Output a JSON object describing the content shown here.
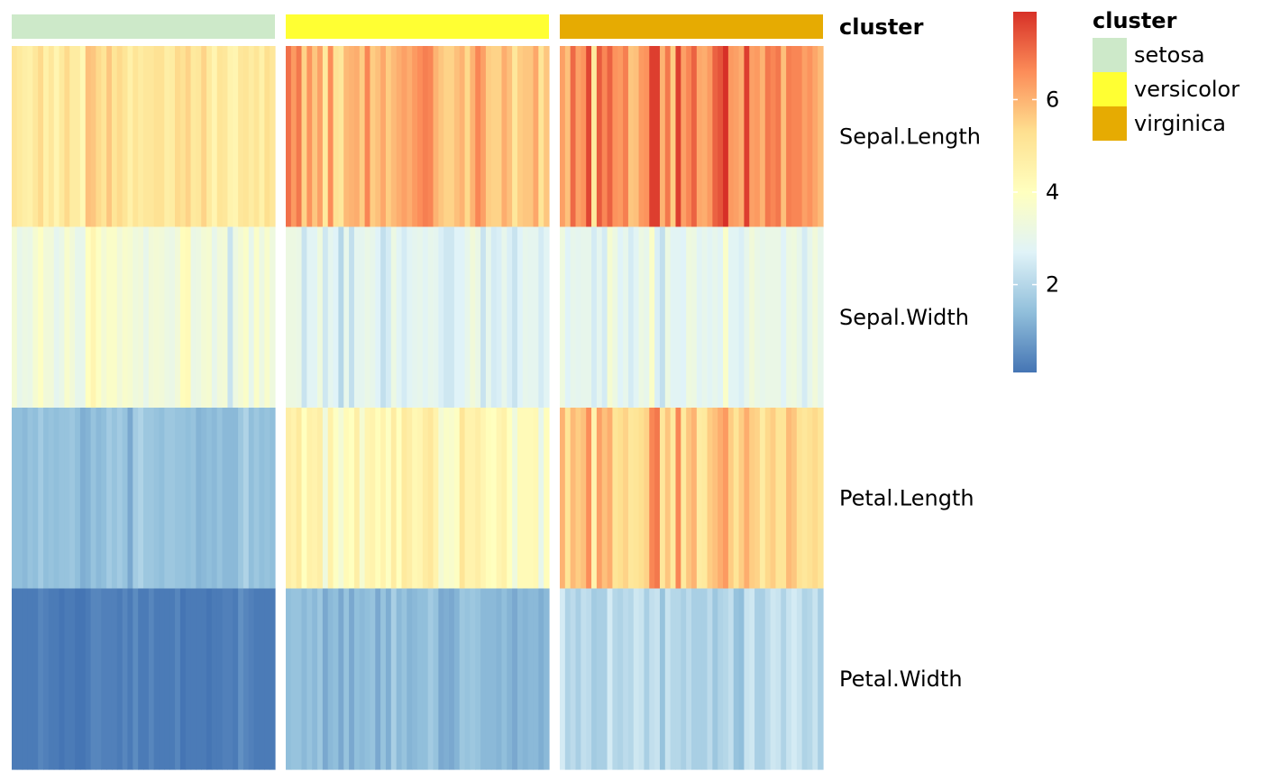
{
  "chart_data": {
    "type": "heatmap",
    "title": "",
    "annotation_title": "cluster",
    "rows": [
      "Sepal.Length",
      "Sepal.Width",
      "Petal.Length",
      "Petal.Width"
    ],
    "clusters": [
      {
        "name": "setosa",
        "color": "#cde9c9",
        "values": {
          "Sepal.Length": [
            5.1,
            4.9,
            4.7,
            4.6,
            5.0,
            5.4,
            4.6,
            5.0,
            4.4,
            4.9,
            5.4,
            4.8,
            4.8,
            4.3,
            5.8,
            5.7,
            5.4,
            5.1,
            5.7,
            5.1,
            5.4,
            5.1,
            4.6,
            5.1,
            4.8,
            5.0,
            5.0,
            5.2,
            5.2,
            4.7,
            4.8,
            5.4,
            5.2,
            5.5,
            4.9,
            5.0,
            5.5,
            4.9,
            4.4,
            5.1,
            5.0,
            4.5,
            4.4,
            5.0,
            5.1,
            4.8,
            5.1,
            4.6,
            5.3,
            5.0
          ],
          "Sepal.Width": [
            3.5,
            3.0,
            3.2,
            3.1,
            3.6,
            3.9,
            3.4,
            3.4,
            2.9,
            3.1,
            3.7,
            3.4,
            3.0,
            3.0,
            4.0,
            4.4,
            3.9,
            3.5,
            3.8,
            3.8,
            3.4,
            3.7,
            3.6,
            3.3,
            3.4,
            3.0,
            3.4,
            3.5,
            3.4,
            3.2,
            3.1,
            3.4,
            4.1,
            4.2,
            3.1,
            3.2,
            3.5,
            3.6,
            3.0,
            3.4,
            3.5,
            2.3,
            3.2,
            3.5,
            3.8,
            3.0,
            3.8,
            3.2,
            3.7,
            3.3
          ],
          "Petal.Length": [
            1.4,
            1.4,
            1.3,
            1.5,
            1.4,
            1.7,
            1.4,
            1.5,
            1.4,
            1.5,
            1.5,
            1.6,
            1.4,
            1.1,
            1.2,
            1.5,
            1.3,
            1.4,
            1.7,
            1.5,
            1.7,
            1.5,
            1.0,
            1.7,
            1.9,
            1.6,
            1.6,
            1.5,
            1.4,
            1.6,
            1.6,
            1.5,
            1.5,
            1.4,
            1.5,
            1.2,
            1.3,
            1.4,
            1.3,
            1.5,
            1.3,
            1.3,
            1.3,
            1.6,
            1.9,
            1.4,
            1.6,
            1.4,
            1.5,
            1.4
          ],
          "Petal.Width": [
            0.2,
            0.2,
            0.2,
            0.2,
            0.2,
            0.4,
            0.3,
            0.2,
            0.2,
            0.1,
            0.2,
            0.2,
            0.1,
            0.1,
            0.2,
            0.4,
            0.4,
            0.3,
            0.3,
            0.3,
            0.2,
            0.4,
            0.2,
            0.5,
            0.2,
            0.2,
            0.4,
            0.2,
            0.2,
            0.2,
            0.2,
            0.4,
            0.1,
            0.2,
            0.2,
            0.2,
            0.2,
            0.1,
            0.2,
            0.2,
            0.3,
            0.3,
            0.2,
            0.6,
            0.4,
            0.3,
            0.2,
            0.2,
            0.2,
            0.2
          ]
        }
      },
      {
        "name": "versicolor",
        "color": "#ffff33",
        "values": {
          "Sepal.Length": [
            7.0,
            6.4,
            6.9,
            5.5,
            6.5,
            5.7,
            6.3,
            4.9,
            6.6,
            5.2,
            5.0,
            5.9,
            6.0,
            6.1,
            5.6,
            6.7,
            5.6,
            5.8,
            6.2,
            5.6,
            5.9,
            6.1,
            6.3,
            6.1,
            6.4,
            6.6,
            6.8,
            6.7,
            6.0,
            5.7,
            5.5,
            5.5,
            5.8,
            6.0,
            5.4,
            6.0,
            6.7,
            6.3,
            5.6,
            5.5,
            5.5,
            6.1,
            5.8,
            5.0,
            5.6,
            5.7,
            5.7,
            6.2,
            5.1,
            5.7
          ],
          "Sepal.Width": [
            3.2,
            3.2,
            3.1,
            2.3,
            2.8,
            2.8,
            3.3,
            2.4,
            2.9,
            2.7,
            2.0,
            3.0,
            2.2,
            2.9,
            2.9,
            3.1,
            3.0,
            2.7,
            2.2,
            2.5,
            3.2,
            2.8,
            2.5,
            2.8,
            2.9,
            3.0,
            2.8,
            3.0,
            2.9,
            2.6,
            2.4,
            2.4,
            2.7,
            2.7,
            3.0,
            3.4,
            3.1,
            2.3,
            3.0,
            2.5,
            2.6,
            3.0,
            2.6,
            2.3,
            2.7,
            3.0,
            2.9,
            2.9,
            2.5,
            2.8
          ],
          "Petal.Length": [
            4.7,
            4.5,
            4.9,
            4.0,
            4.6,
            4.5,
            4.7,
            3.3,
            4.6,
            3.9,
            3.5,
            4.2,
            4.0,
            4.7,
            3.6,
            4.4,
            4.5,
            4.1,
            4.5,
            3.9,
            4.8,
            4.0,
            4.9,
            4.7,
            4.3,
            4.4,
            4.8,
            5.0,
            4.5,
            3.5,
            3.8,
            3.7,
            3.9,
            5.1,
            4.5,
            4.5,
            4.7,
            4.4,
            4.1,
            4.0,
            4.4,
            4.6,
            4.0,
            3.3,
            4.2,
            4.2,
            4.2,
            4.3,
            3.0,
            4.1
          ],
          "Petal.Width": [
            1.4,
            1.5,
            1.5,
            1.3,
            1.5,
            1.3,
            1.6,
            1.0,
            1.3,
            1.4,
            1.0,
            1.5,
            1.0,
            1.4,
            1.3,
            1.4,
            1.5,
            1.0,
            1.5,
            1.1,
            1.8,
            1.3,
            1.5,
            1.2,
            1.3,
            1.4,
            1.4,
            1.7,
            1.5,
            1.0,
            1.1,
            1.0,
            1.2,
            1.6,
            1.5,
            1.6,
            1.5,
            1.3,
            1.3,
            1.3,
            1.2,
            1.4,
            1.2,
            1.0,
            1.3,
            1.2,
            1.3,
            1.3,
            1.1,
            1.3
          ]
        }
      },
      {
        "name": "virginica",
        "color": "#e6ab02",
        "values": {
          "Sepal.Length": [
            6.3,
            5.8,
            7.1,
            6.3,
            6.5,
            7.6,
            4.9,
            7.3,
            6.7,
            7.2,
            6.5,
            6.4,
            6.8,
            5.7,
            5.8,
            6.4,
            6.5,
            7.7,
            7.7,
            6.0,
            6.9,
            5.6,
            7.7,
            6.3,
            6.7,
            7.2,
            6.2,
            6.1,
            6.4,
            7.2,
            7.4,
            7.9,
            6.4,
            6.3,
            6.1,
            7.7,
            6.3,
            6.4,
            6.0,
            6.9,
            6.7,
            6.9,
            5.8,
            6.8,
            6.7,
            6.7,
            6.3,
            6.5,
            6.2,
            5.9
          ],
          "Sepal.Width": [
            3.3,
            2.7,
            3.0,
            2.9,
            3.0,
            3.0,
            2.5,
            2.9,
            2.5,
            3.6,
            3.2,
            2.7,
            3.0,
            2.5,
            2.8,
            3.2,
            3.0,
            3.8,
            2.6,
            2.2,
            3.2,
            2.8,
            2.8,
            2.7,
            3.3,
            3.2,
            2.8,
            3.0,
            2.8,
            3.0,
            2.8,
            3.8,
            2.8,
            2.8,
            2.6,
            3.0,
            3.4,
            3.1,
            3.0,
            3.1,
            3.1,
            3.1,
            2.7,
            3.2,
            3.3,
            3.0,
            2.5,
            3.0,
            3.4,
            3.0
          ],
          "Petal.Length": [
            6.0,
            5.1,
            5.9,
            5.6,
            5.8,
            6.6,
            4.5,
            6.3,
            5.8,
            6.1,
            5.1,
            5.3,
            5.5,
            5.0,
            5.1,
            5.3,
            5.5,
            6.7,
            6.9,
            5.0,
            5.7,
            4.9,
            6.7,
            4.9,
            5.7,
            6.0,
            4.8,
            4.9,
            5.6,
            5.8,
            6.1,
            6.4,
            5.6,
            5.1,
            5.6,
            6.1,
            5.6,
            5.5,
            4.8,
            5.4,
            5.6,
            5.1,
            5.1,
            5.9,
            5.7,
            5.2,
            5.0,
            5.2,
            5.4,
            5.1
          ],
          "Petal.Width": [
            2.5,
            1.9,
            2.1,
            1.8,
            2.2,
            2.1,
            1.7,
            1.8,
            1.8,
            2.5,
            2.0,
            1.9,
            2.1,
            2.0,
            2.4,
            2.3,
            1.8,
            2.2,
            2.3,
            1.5,
            2.3,
            2.0,
            2.0,
            1.8,
            2.1,
            1.8,
            1.8,
            1.8,
            2.1,
            1.6,
            1.9,
            2.0,
            2.2,
            1.5,
            1.4,
            2.3,
            2.4,
            1.8,
            1.8,
            2.1,
            2.4,
            2.3,
            1.9,
            2.3,
            2.5,
            2.3,
            1.9,
            2.0,
            2.3,
            1.8
          ]
        }
      }
    ],
    "color_scale": {
      "ticks": [
        2,
        4,
        6
      ],
      "range": [
        0.1,
        7.9
      ],
      "colors": [
        "#4575b4",
        "#91bfdb",
        "#e0f3f8",
        "#ffffbf",
        "#fee090",
        "#fc8d59",
        "#d73027"
      ]
    },
    "legend": {
      "title": "cluster",
      "entries": [
        "setosa",
        "versicolor",
        "virginica"
      ],
      "placement": "top-right"
    }
  }
}
